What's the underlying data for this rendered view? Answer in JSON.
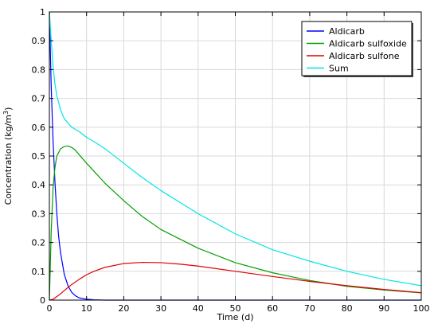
{
  "chart_data": {
    "type": "line",
    "title": "",
    "xlabel": "Time (d)",
    "ylabel": "Concentration (kg/m",
    "ylabel_sup": "3",
    "ylabel_end": ")",
    "xlim": [
      0,
      100
    ],
    "ylim": [
      0,
      1
    ],
    "x_ticks": [
      0,
      10,
      20,
      30,
      40,
      50,
      60,
      70,
      80,
      90,
      100
    ],
    "y_ticks": [
      0,
      0.1,
      0.2,
      0.3,
      0.4,
      0.5,
      0.6,
      0.7,
      0.8,
      0.9,
      1
    ],
    "grid": true,
    "legend_position": "top-right",
    "series": [
      {
        "name": "Aldicarb",
        "color": "#0000ff",
        "x": [
          0,
          0.5,
          1,
          1.5,
          2,
          2.5,
          3,
          4,
          5,
          6,
          7,
          8,
          10,
          12,
          15,
          20,
          30,
          40,
          50,
          60,
          70,
          80,
          90,
          100
        ],
        "y": [
          1,
          0.74,
          0.55,
          0.41,
          0.3,
          0.22,
          0.165,
          0.09,
          0.05,
          0.027,
          0.015,
          0.008,
          0.003,
          0.001,
          0,
          0,
          0,
          0,
          0,
          0,
          0,
          0,
          0,
          0
        ]
      },
      {
        "name": "Aldicarb sulfoxide",
        "color": "#00a000",
        "x": [
          0,
          0.5,
          1,
          1.5,
          2,
          3,
          4,
          5,
          6,
          7,
          8,
          10,
          12,
          15,
          20,
          25,
          30,
          40,
          50,
          60,
          70,
          80,
          90,
          100
        ],
        "y": [
          0,
          0.24,
          0.39,
          0.46,
          0.5,
          0.525,
          0.533,
          0.535,
          0.53,
          0.52,
          0.505,
          0.475,
          0.447,
          0.405,
          0.345,
          0.29,
          0.245,
          0.18,
          0.13,
          0.095,
          0.068,
          0.048,
          0.035,
          0.025
        ]
      },
      {
        "name": "Aldicarb sulfone",
        "color": "#e00000",
        "x": [
          0,
          1,
          2,
          3,
          4,
          5,
          6,
          8,
          10,
          12,
          15,
          20,
          25,
          30,
          35,
          40,
          50,
          60,
          70,
          80,
          90,
          100
        ],
        "y": [
          0,
          0.003,
          0.012,
          0.022,
          0.033,
          0.044,
          0.054,
          0.072,
          0.088,
          0.1,
          0.114,
          0.127,
          0.131,
          0.13,
          0.125,
          0.118,
          0.1,
          0.082,
          0.065,
          0.05,
          0.037,
          0.026
        ]
      },
      {
        "name": "Sum",
        "color": "#00e5e5",
        "x": [
          0,
          0.5,
          1,
          1.5,
          2,
          3,
          4,
          5,
          6,
          8,
          10,
          12,
          15,
          20,
          25,
          30,
          40,
          50,
          60,
          70,
          80,
          90,
          100
        ],
        "y": [
          1,
          0.9,
          0.81,
          0.75,
          0.71,
          0.66,
          0.63,
          0.615,
          0.6,
          0.585,
          0.565,
          0.55,
          0.525,
          0.475,
          0.425,
          0.38,
          0.3,
          0.23,
          0.175,
          0.135,
          0.1,
          0.072,
          0.05
        ]
      }
    ]
  }
}
